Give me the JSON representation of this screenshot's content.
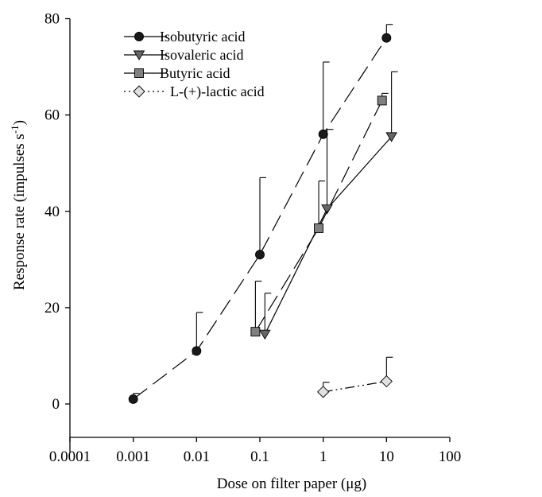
{
  "chart_data": {
    "type": "line",
    "title": "",
    "xlabel": "Dose on filter paper (μg)",
    "ylabel_main": "Response rate (impulses s",
    "ylabel_sup": "-1",
    "ylabel_end": ")",
    "x_scale": "log",
    "xlim": [
      0.0001,
      100
    ],
    "ylim": [
      -10,
      80
    ],
    "x_ticks": [
      {
        "value": 0.0001,
        "label": "0.0001"
      },
      {
        "value": 0.001,
        "label": "0.001"
      },
      {
        "value": 0.01,
        "label": "0.01"
      },
      {
        "value": 0.1,
        "label": "0.1"
      },
      {
        "value": 1,
        "label": "1"
      },
      {
        "value": 10,
        "label": "10"
      },
      {
        "value": 100,
        "label": "100"
      }
    ],
    "y_ticks": [
      {
        "value": 0,
        "label": "0"
      },
      {
        "value": 20,
        "label": "20"
      },
      {
        "value": 40,
        "label": "40"
      },
      {
        "value": 60,
        "label": "60"
      },
      {
        "value": 80,
        "label": "80"
      }
    ],
    "grid": false,
    "legend_position": "top-left",
    "series": [
      {
        "name": "Isobutyric acid",
        "marker": "circle",
        "fill": "#1a1a1a",
        "dash": "22,9",
        "x": [
          0.001,
          0.01,
          0.1,
          1,
          10
        ],
        "y": [
          1,
          11,
          31,
          56,
          76
        ],
        "err": [
          1.2,
          8,
          16,
          15,
          2.8
        ]
      },
      {
        "name": "Isovaleric acid",
        "marker": "triangle-down",
        "fill": "#666666",
        "dash": "",
        "x": [
          0.12,
          1.15,
          12
        ],
        "y": [
          14.5,
          40.5,
          55.5
        ],
        "err": [
          8.5,
          16.5,
          13.5
        ]
      },
      {
        "name": "Butyric acid",
        "marker": "square",
        "fill": "#808080",
        "dash": "22,9",
        "x": [
          0.085,
          0.85,
          8.5
        ],
        "y": [
          15,
          36.5,
          63
        ],
        "err": [
          10.5,
          9.8,
          1.5
        ]
      },
      {
        "name": "L-(+)-lactic acid",
        "marker": "diamond",
        "fill": "#e0e0e0",
        "dash": "12,4,2,4,2,4",
        "x": [
          1,
          10
        ],
        "y": [
          2.5,
          4.7
        ],
        "err": [
          2,
          5
        ]
      }
    ]
  }
}
